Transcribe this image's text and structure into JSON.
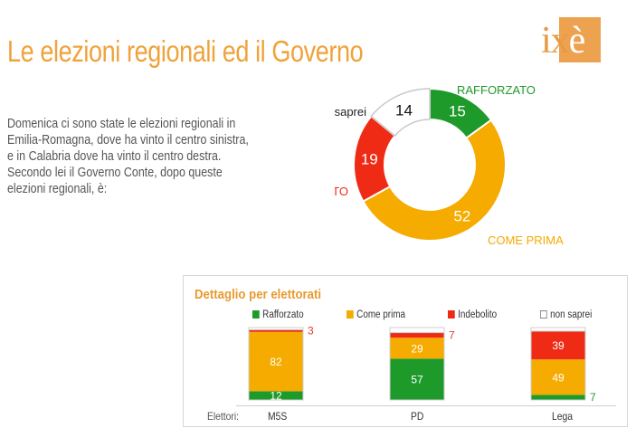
{
  "title": "Le elezioni regionali ed il Governo",
  "logo": {
    "text_ix": "ix",
    "text_e": "è"
  },
  "question_lines": [
    "Domenica ci sono state le elezioni regionali in",
    "Emilia-Romagna, dove ha vinto il centro sinistra,",
    "e in Calabria dove ha vinto il centro destra.",
    "Secondo lei il Governo Conte, dopo queste",
    "elezioni regionali, è:"
  ],
  "colors": {
    "rafforzato": "#1e9a2b",
    "come_prima": "#f5ab00",
    "indebolito": "#ef2b16",
    "non_saprei": "#ffffff",
    "outline": "#c8c8c8"
  },
  "chart_data": [
    {
      "type": "pie",
      "donut": true,
      "slices": [
        {
          "label": "RAFFORZATO",
          "value": 15,
          "color": "#1e9a2b"
        },
        {
          "label": "COME PRIMA",
          "value": 52,
          "color": "#f5ab00"
        },
        {
          "label": "INDEBOLITO",
          "value": 19,
          "color": "#ef2b16"
        },
        {
          "label": "non saprei",
          "value": 14,
          "color": "#ffffff"
        }
      ]
    },
    {
      "type": "bar",
      "stacked": true,
      "title": "Dettaglio per elettorati",
      "xlabel": "Elettori:",
      "categories": [
        "M5S",
        "PD",
        "Lega"
      ],
      "series": [
        {
          "name": "Rafforzato",
          "values": [
            12,
            57,
            7
          ],
          "color": "#1e9a2b"
        },
        {
          "name": "Come prima",
          "values": [
            82,
            29,
            49
          ],
          "color": "#f5ab00"
        },
        {
          "name": "Indebolito",
          "values": [
            3,
            7,
            39
          ],
          "color": "#ef2b16"
        },
        {
          "name": "non saprei",
          "values": [
            3,
            7,
            5
          ],
          "color": "#ffffff"
        }
      ],
      "ylim": [
        0,
        100
      ]
    }
  ]
}
